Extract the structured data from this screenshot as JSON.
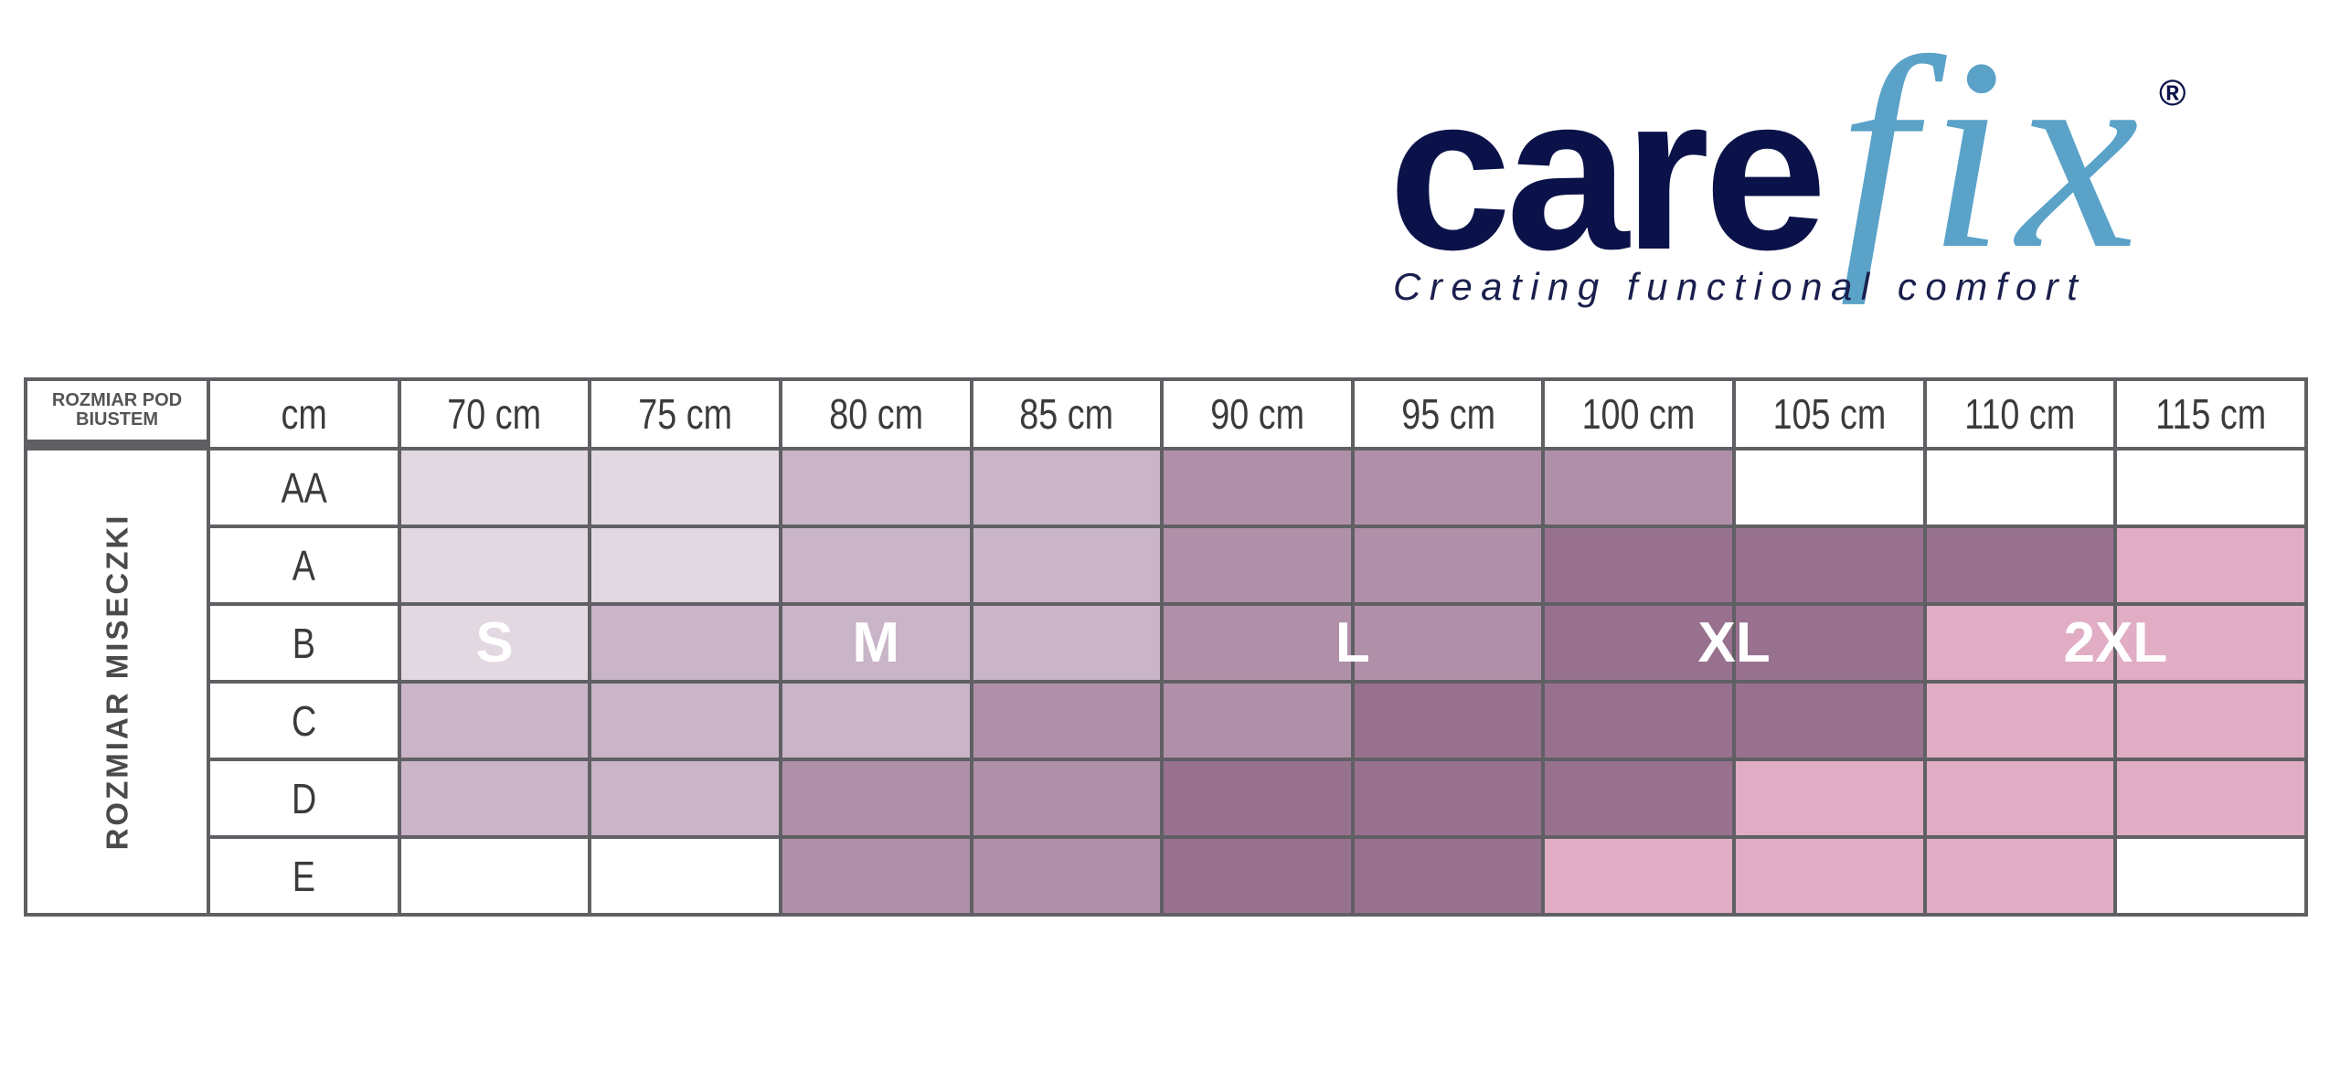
{
  "logo": {
    "word1": "care",
    "word2": "fix",
    "registered": "®",
    "tagline": "Creating functional comfort",
    "colors": {
      "care": "#0b1249",
      "fix": "#5aa2c8"
    }
  },
  "table": {
    "corner_label": [
      "ROZMIAR POD",
      "BIUSTEM"
    ],
    "unit_header": "cm",
    "row_group_label": "ROZMIAR MISECZKI",
    "columns": [
      "70 cm",
      "75 cm",
      "80 cm",
      "85 cm",
      "90 cm",
      "95 cm",
      "100 cm",
      "105 cm",
      "110 cm",
      "115 cm"
    ],
    "level_colors": [
      "#ffffff",
      "#e2d8e1",
      "#c9b4c8",
      "#b090a8",
      "#98718f",
      "#e0adc5"
    ],
    "rows": [
      {
        "cup": "AA",
        "levels": [
          1,
          1,
          2,
          2,
          3,
          3,
          3,
          0,
          0,
          0
        ]
      },
      {
        "cup": "A",
        "levels": [
          1,
          1,
          2,
          2,
          3,
          3,
          4,
          4,
          4,
          5
        ]
      },
      {
        "cup": "B",
        "levels": [
          1,
          2,
          2,
          2,
          3,
          3,
          4,
          4,
          5,
          5
        ]
      },
      {
        "cup": "C",
        "levels": [
          2,
          2,
          2,
          3,
          3,
          4,
          4,
          4,
          5,
          5
        ]
      },
      {
        "cup": "D",
        "levels": [
          2,
          2,
          3,
          3,
          4,
          4,
          4,
          5,
          5,
          5
        ]
      },
      {
        "cup": "E",
        "levels": [
          0,
          0,
          3,
          3,
          4,
          4,
          5,
          5,
          5,
          0
        ]
      }
    ],
    "sizes": [
      {
        "label": "S",
        "col_start": 0,
        "col_end": 0
      },
      {
        "label": "M",
        "col_start": 2,
        "col_end": 2
      },
      {
        "label": "L",
        "col_start": 4,
        "col_end": 5
      },
      {
        "label": "XL",
        "col_start": 6,
        "col_end": 7
      },
      {
        "label": "2XL",
        "col_start": 8,
        "col_end": 9
      }
    ]
  }
}
